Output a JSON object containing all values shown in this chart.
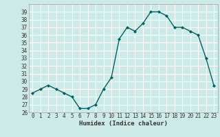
{
  "x": [
    0,
    1,
    2,
    3,
    4,
    5,
    6,
    7,
    8,
    9,
    10,
    11,
    12,
    13,
    14,
    15,
    16,
    17,
    18,
    19,
    20,
    21,
    22,
    23
  ],
  "y": [
    28.5,
    29.0,
    29.5,
    29.0,
    28.5,
    28.0,
    26.5,
    26.5,
    27.0,
    29.0,
    30.5,
    35.5,
    37.0,
    36.5,
    37.5,
    39.0,
    39.0,
    38.5,
    37.0,
    37.0,
    36.5,
    36.0,
    33.0,
    29.5
  ],
  "line_color": "#006060",
  "marker": "D",
  "marker_size": 2,
  "xlabel": "Humidex (Indice chaleur)",
  "xlim": [
    -0.5,
    23.5
  ],
  "ylim": [
    26,
    40
  ],
  "yticks": [
    26,
    27,
    28,
    29,
    30,
    31,
    32,
    33,
    34,
    35,
    36,
    37,
    38,
    39
  ],
  "xticks": [
    0,
    1,
    2,
    3,
    4,
    5,
    6,
    7,
    8,
    9,
    10,
    11,
    12,
    13,
    14,
    15,
    16,
    17,
    18,
    19,
    20,
    21,
    22,
    23
  ],
  "bg_color": "#cceae8",
  "grid_color": "#ffffff",
  "tick_color": "#333333",
  "font_family": "monospace",
  "tick_fontsize": 5.5,
  "xlabel_fontsize": 6.5,
  "linewidth": 1.0
}
